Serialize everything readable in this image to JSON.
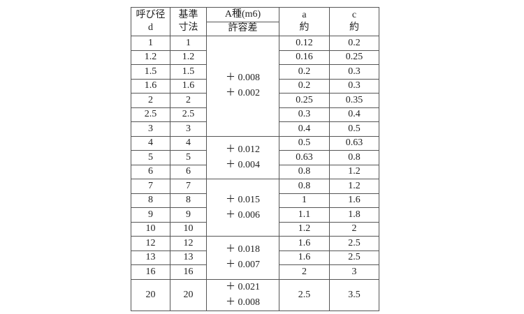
{
  "header": {
    "nominal_diameter": [
      "呼び径",
      "d"
    ],
    "basic_size": [
      "基準",
      "寸法"
    ],
    "class_a": "A種(m6)",
    "tolerance": "許容差",
    "a": [
      "a",
      "約"
    ],
    "c": [
      "c",
      "約"
    ]
  },
  "groups": [
    {
      "tolerance": [
        "＋ 0.008",
        "＋ 0.002"
      ],
      "rows": [
        {
          "d": "1",
          "basic": "1",
          "a": "0.12",
          "c": "0.2"
        },
        {
          "d": "1.2",
          "basic": "1.2",
          "a": "0.16",
          "c": "0.25"
        },
        {
          "d": "1.5",
          "basic": "1.5",
          "a": "0.2",
          "c": "0.3"
        },
        {
          "d": "1.6",
          "basic": "1.6",
          "a": "0.2",
          "c": "0.3"
        },
        {
          "d": "2",
          "basic": "2",
          "a": "0.25",
          "c": "0.35"
        },
        {
          "d": "2.5",
          "basic": "2.5",
          "a": "0.3",
          "c": "0.4"
        },
        {
          "d": "3",
          "basic": "3",
          "a": "0.4",
          "c": "0.5"
        }
      ]
    },
    {
      "tolerance": [
        "＋ 0.012",
        "＋ 0.004"
      ],
      "rows": [
        {
          "d": "4",
          "basic": "4",
          "a": "0.5",
          "c": "0.63"
        },
        {
          "d": "5",
          "basic": "5",
          "a": "0.63",
          "c": "0.8"
        },
        {
          "d": "6",
          "basic": "6",
          "a": "0.8",
          "c": "1.2"
        }
      ]
    },
    {
      "tolerance": [
        "＋ 0.015",
        "＋ 0.006"
      ],
      "rows": [
        {
          "d": "7",
          "basic": "7",
          "a": "0.8",
          "c": "1.2"
        },
        {
          "d": "8",
          "basic": "8",
          "a": "1",
          "c": "1.6"
        },
        {
          "d": "9",
          "basic": "9",
          "a": "1.1",
          "c": "1.8"
        },
        {
          "d": "10",
          "basic": "10",
          "a": "1.2",
          "c": "2"
        }
      ]
    },
    {
      "tolerance": [
        "＋ 0.018",
        "＋ 0.007"
      ],
      "rows": [
        {
          "d": "12",
          "basic": "12",
          "a": "1.6",
          "c": "2.5"
        },
        {
          "d": "13",
          "basic": "13",
          "a": "1.6",
          "c": "2.5"
        },
        {
          "d": "16",
          "basic": "16",
          "a": "2",
          "c": "3"
        }
      ]
    },
    {
      "tolerance": [
        "＋ 0.021",
        "＋ 0.008"
      ],
      "rows": [
        {
          "d": "20",
          "basic": "20",
          "a": "2.5",
          "c": "3.5"
        }
      ]
    }
  ]
}
